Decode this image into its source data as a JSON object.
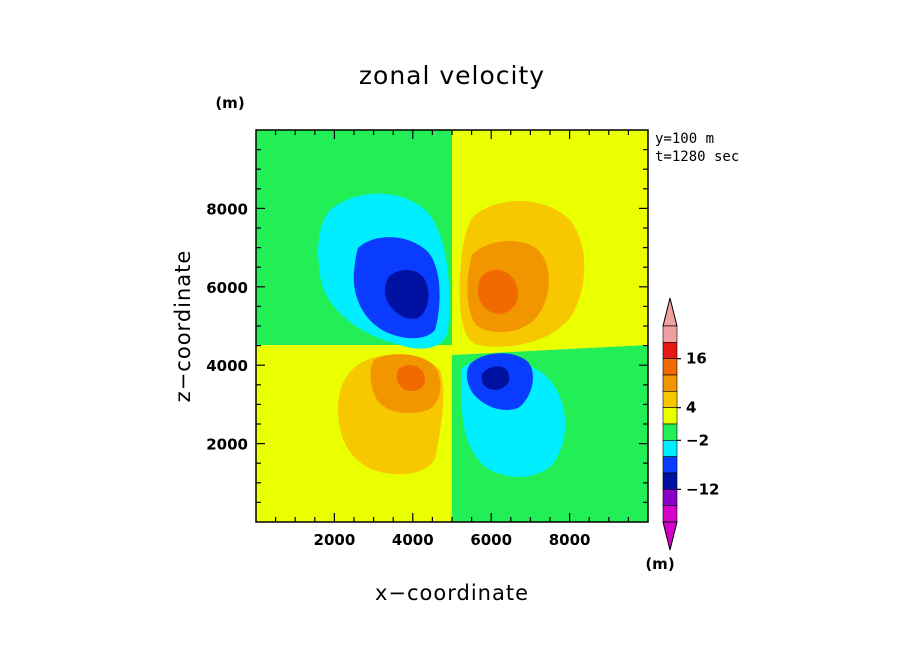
{
  "chart_data": {
    "type": "contour",
    "title": "zonal velocity",
    "xlabel": "x−coordinate",
    "ylabel": "z−coordinate",
    "x_unit": "(m)",
    "y_unit": "(m)",
    "xlim": [
      0,
      10000
    ],
    "ylim": [
      0,
      10000
    ],
    "xticks": [
      2000,
      4000,
      6000,
      8000
    ],
    "yticks": [
      2000,
      4000,
      6000,
      8000
    ],
    "annotations": [
      "y=100 m",
      "t=1280 sec"
    ],
    "colorbar": {
      "unit": "(m)",
      "labels": [
        "16",
        "4",
        "−2",
        "−12"
      ],
      "colors": [
        "#f0a0a0",
        "#e81818",
        "#f06a00",
        "#f29600",
        "#f7c700",
        "#eaff00",
        "#22ee55",
        "#00eeff",
        "#0a3cff",
        "#0010a0",
        "#8a00c8",
        "#d600c8"
      ]
    },
    "regions": [
      {
        "name": "upper-left quadrant background",
        "color": "#22ee55"
      },
      {
        "name": "upper-right quadrant background",
        "color": "#eaff00"
      },
      {
        "name": "lower-left quadrant background",
        "color": "#eaff00"
      },
      {
        "name": "lower-right quadrant background",
        "color": "#22ee55"
      },
      {
        "name": "negative lobe upper-left",
        "center": [
          3800,
          5800
        ],
        "colors": [
          "#00eeff",
          "#0a3cff",
          "#0010a0"
        ]
      },
      {
        "name": "positive lobe upper-right",
        "center": [
          6200,
          5800
        ],
        "colors": [
          "#f7c700",
          "#f29600",
          "#f06a00"
        ]
      },
      {
        "name": "positive lobe lower-left",
        "center": [
          3900,
          3700
        ],
        "colors": [
          "#f7c700",
          "#f29600",
          "#f06a00"
        ]
      },
      {
        "name": "negative lobe lower-right",
        "center": [
          6000,
          3700
        ],
        "colors": [
          "#00eeff",
          "#0a3cff",
          "#0010a0"
        ]
      }
    ]
  }
}
